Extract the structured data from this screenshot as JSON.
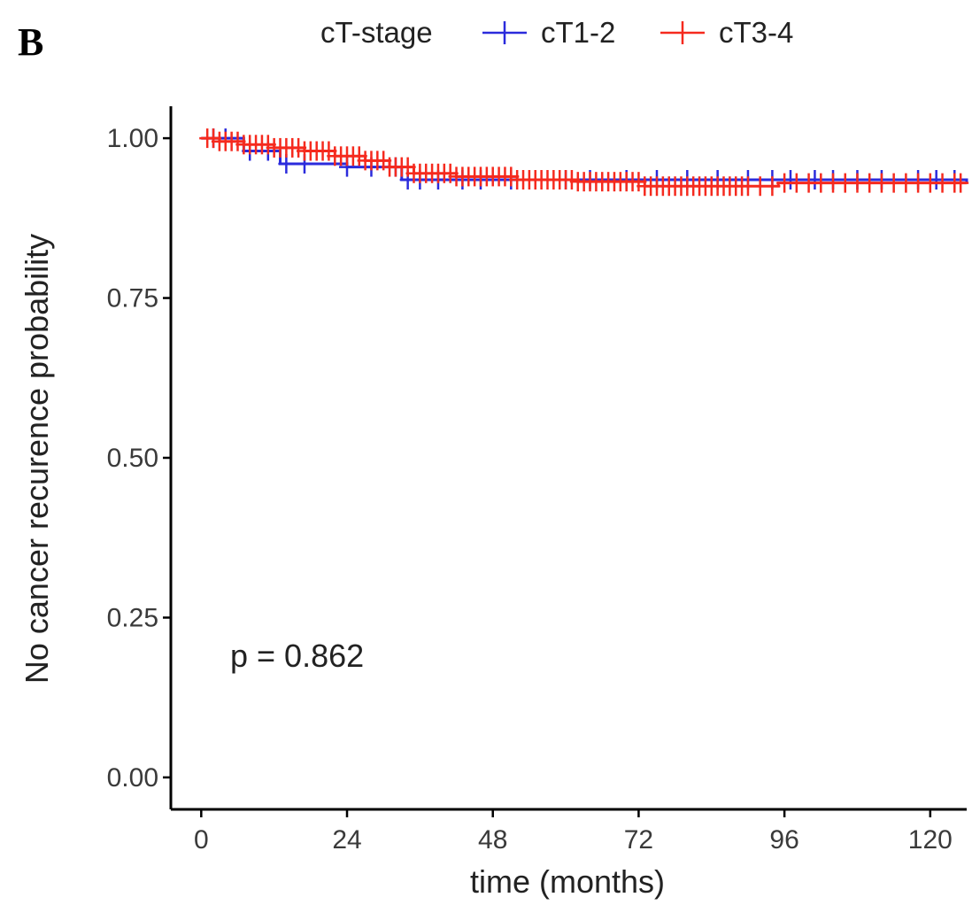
{
  "panel_label": "B",
  "legend": {
    "title": "cT-stage",
    "entries": [
      {
        "name": "cT1-2",
        "color": "#2b2bdc"
      },
      {
        "name": "cT3-4",
        "color": "#f52a1e"
      }
    ]
  },
  "annotation": "p = 0.862",
  "chart_data": {
    "type": "line",
    "subtype": "kaplan-meier-step",
    "xlabel": "time (months)",
    "ylabel": "No cancer recurence probability",
    "xlim": [
      -5,
      126
    ],
    "ylim": [
      -0.05,
      1.05
    ],
    "x_ticks": [
      0,
      24,
      48,
      72,
      96,
      120
    ],
    "y_ticks": [
      0.0,
      0.25,
      0.5,
      0.75,
      1.0
    ],
    "y_tick_labels": [
      "0.00",
      "0.25",
      "0.50",
      "0.75",
      "1.00"
    ],
    "grid": false,
    "legend_position": "top",
    "series": [
      {
        "name": "cT1-2",
        "color": "#2b2bdc",
        "steps": [
          [
            0,
            1.0
          ],
          [
            7,
            0.98
          ],
          [
            13,
            0.96
          ],
          [
            24,
            0.955
          ],
          [
            33,
            0.935
          ],
          [
            126,
            0.93
          ]
        ],
        "censor_x": [
          2,
          4,
          8,
          11,
          14,
          17,
          24,
          28,
          32,
          34,
          36,
          39,
          43,
          46,
          51,
          55,
          60,
          64,
          70,
          75,
          80,
          85,
          90,
          94,
          97,
          101,
          104,
          108,
          112,
          118,
          121,
          124
        ]
      },
      {
        "name": "cT3-4",
        "color": "#f52a1e",
        "steps": [
          [
            0,
            1.0
          ],
          [
            3,
            0.995
          ],
          [
            7,
            0.99
          ],
          [
            12,
            0.985
          ],
          [
            17,
            0.98
          ],
          [
            22,
            0.972
          ],
          [
            27,
            0.965
          ],
          [
            31,
            0.955
          ],
          [
            35,
            0.945
          ],
          [
            42,
            0.94
          ],
          [
            52,
            0.935
          ],
          [
            62,
            0.932
          ],
          [
            73,
            0.925
          ],
          [
            95,
            0.93
          ],
          [
            126,
            0.93
          ]
        ],
        "censor_x": [
          1,
          2,
          3,
          4,
          5,
          6,
          7,
          8,
          9,
          10,
          11,
          12,
          13,
          14,
          15,
          16,
          17,
          18,
          19,
          20,
          21,
          22,
          23,
          24,
          25,
          26,
          27,
          28,
          29,
          30,
          31,
          32,
          33,
          34,
          35,
          36,
          37,
          38,
          39,
          40,
          41,
          42,
          43,
          44,
          45,
          46,
          47,
          48,
          49,
          50,
          51,
          52,
          53,
          54,
          55,
          56,
          57,
          58,
          59,
          60,
          61,
          62,
          63,
          64,
          65,
          66,
          67,
          68,
          69,
          70,
          71,
          72,
          73,
          74,
          75,
          76,
          77,
          78,
          79,
          80,
          81,
          82,
          83,
          84,
          85,
          86,
          87,
          88,
          89,
          90,
          92,
          94,
          96,
          98,
          100,
          102,
          104,
          106,
          108,
          110,
          112,
          114,
          116,
          118,
          120,
          122,
          124,
          125
        ]
      }
    ]
  }
}
